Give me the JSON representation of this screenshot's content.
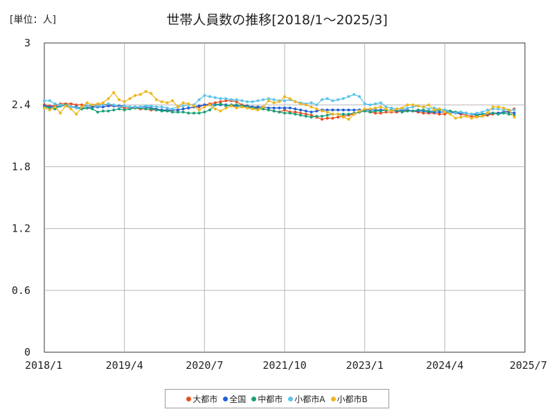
{
  "chart_data": {
    "type": "line",
    "title": "世帯人員数の推移[2018/1～2025/3]",
    "unit_label": "[単位：人]",
    "xlabel": "",
    "ylabel": "",
    "ylim": [
      0,
      3
    ],
    "y_ticks": [
      "0",
      "0.6",
      "1.2",
      "1.8",
      "2.4",
      "3"
    ],
    "y_tick_values": [
      0,
      0.6,
      1.2,
      1.8,
      2.4,
      3
    ],
    "x_ticks": [
      "2018/1",
      "2019/4",
      "2020/7",
      "2021/10",
      "2023/1",
      "2024/4",
      "2025/7"
    ],
    "x_tick_months": [
      0,
      15,
      30,
      45,
      60,
      75,
      90
    ],
    "grid": true,
    "series": [
      {
        "name": "大都市",
        "color": "#e8501e",
        "values": [
          2.4,
          2.39,
          2.39,
          2.41,
          2.41,
          2.41,
          2.4,
          2.4,
          2.39,
          2.39,
          2.4,
          2.4,
          2.4,
          2.39,
          2.38,
          2.37,
          2.37,
          2.37,
          2.36,
          2.36,
          2.35,
          2.35,
          2.35,
          2.34,
          2.35,
          2.35,
          2.36,
          2.37,
          2.38,
          2.38,
          2.4,
          2.41,
          2.42,
          2.43,
          2.44,
          2.44,
          2.43,
          2.4,
          2.39,
          2.38,
          2.37,
          2.36,
          2.35,
          2.34,
          2.33,
          2.35,
          2.33,
          2.33,
          2.32,
          2.31,
          2.3,
          2.28,
          2.26,
          2.27,
          2.27,
          2.28,
          2.29,
          2.3,
          2.31,
          2.33,
          2.34,
          2.33,
          2.32,
          2.32,
          2.33,
          2.33,
          2.33,
          2.34,
          2.34,
          2.34,
          2.33,
          2.32,
          2.32,
          2.32,
          2.31,
          2.31,
          2.33,
          2.32,
          2.31,
          2.3,
          2.29,
          2.29,
          2.29,
          2.3,
          2.31,
          2.32,
          2.33,
          2.34,
          2.36
        ]
      },
      {
        "name": "全国",
        "color": "#1f5fd6",
        "values": [
          2.39,
          2.38,
          2.38,
          2.39,
          2.39,
          2.38,
          2.38,
          2.37,
          2.37,
          2.38,
          2.38,
          2.38,
          2.39,
          2.39,
          2.39,
          2.39,
          2.38,
          2.38,
          2.38,
          2.38,
          2.37,
          2.36,
          2.35,
          2.35,
          2.35,
          2.35,
          2.36,
          2.37,
          2.38,
          2.39,
          2.4,
          2.4,
          2.4,
          2.4,
          2.4,
          2.39,
          2.39,
          2.39,
          2.39,
          2.38,
          2.38,
          2.38,
          2.37,
          2.37,
          2.37,
          2.37,
          2.37,
          2.36,
          2.35,
          2.34,
          2.33,
          2.34,
          2.35,
          2.35,
          2.35,
          2.35,
          2.35,
          2.35,
          2.35,
          2.35,
          2.35,
          2.35,
          2.35,
          2.35,
          2.35,
          2.35,
          2.34,
          2.35,
          2.35,
          2.34,
          2.34,
          2.34,
          2.33,
          2.33,
          2.33,
          2.33,
          2.33,
          2.32,
          2.32,
          2.32,
          2.31,
          2.31,
          2.31,
          2.31,
          2.32,
          2.32,
          2.33,
          2.33,
          2.32
        ]
      },
      {
        "name": "中都市",
        "color": "#1aa07a",
        "values": [
          2.38,
          2.37,
          2.36,
          2.39,
          2.4,
          2.38,
          2.37,
          2.36,
          2.37,
          2.36,
          2.33,
          2.34,
          2.34,
          2.35,
          2.36,
          2.35,
          2.36,
          2.37,
          2.37,
          2.36,
          2.36,
          2.35,
          2.34,
          2.34,
          2.33,
          2.33,
          2.33,
          2.32,
          2.32,
          2.32,
          2.33,
          2.35,
          2.4,
          2.41,
          2.39,
          2.4,
          2.4,
          2.39,
          2.38,
          2.37,
          2.36,
          2.36,
          2.35,
          2.34,
          2.33,
          2.32,
          2.32,
          2.31,
          2.3,
          2.29,
          2.28,
          2.29,
          2.29,
          2.3,
          2.31,
          2.31,
          2.31,
          2.31,
          2.32,
          2.33,
          2.34,
          2.33,
          2.34,
          2.34,
          2.35,
          2.35,
          2.35,
          2.33,
          2.34,
          2.34,
          2.35,
          2.35,
          2.34,
          2.34,
          2.35,
          2.35,
          2.34,
          2.33,
          2.33,
          2.32,
          2.31,
          2.3,
          2.31,
          2.32,
          2.32,
          2.31,
          2.32,
          2.31,
          2.3
        ]
      },
      {
        "name": "小都市A",
        "color": "#5bc3eb",
        "values": [
          2.44,
          2.44,
          2.41,
          2.4,
          2.39,
          2.38,
          2.37,
          2.38,
          2.39,
          2.4,
          2.39,
          2.4,
          2.41,
          2.4,
          2.38,
          2.39,
          2.38,
          2.38,
          2.38,
          2.39,
          2.39,
          2.38,
          2.38,
          2.37,
          2.36,
          2.38,
          2.39,
          2.4,
          2.4,
          2.45,
          2.49,
          2.48,
          2.47,
          2.46,
          2.46,
          2.45,
          2.45,
          2.44,
          2.43,
          2.43,
          2.44,
          2.45,
          2.46,
          2.45,
          2.44,
          2.44,
          2.45,
          2.43,
          2.42,
          2.41,
          2.42,
          2.4,
          2.45,
          2.46,
          2.44,
          2.45,
          2.46,
          2.48,
          2.5,
          2.48,
          2.41,
          2.4,
          2.41,
          2.42,
          2.38,
          2.37,
          2.36,
          2.36,
          2.37,
          2.38,
          2.39,
          2.38,
          2.36,
          2.37,
          2.36,
          2.35,
          2.32,
          2.32,
          2.33,
          2.32,
          2.31,
          2.32,
          2.33,
          2.35,
          2.36,
          2.36,
          2.35,
          2.35,
          2.35
        ]
      },
      {
        "name": "小都市B",
        "color": "#efb51e",
        "values": [
          2.37,
          2.35,
          2.38,
          2.32,
          2.39,
          2.36,
          2.31,
          2.38,
          2.42,
          2.4,
          2.41,
          2.42,
          2.46,
          2.52,
          2.45,
          2.43,
          2.46,
          2.49,
          2.5,
          2.53,
          2.51,
          2.45,
          2.43,
          2.42,
          2.44,
          2.38,
          2.42,
          2.41,
          2.39,
          2.35,
          2.38,
          2.4,
          2.36,
          2.34,
          2.37,
          2.39,
          2.37,
          2.38,
          2.37,
          2.36,
          2.35,
          2.38,
          2.44,
          2.42,
          2.43,
          2.48,
          2.46,
          2.43,
          2.41,
          2.4,
          2.38,
          2.36,
          2.34,
          2.33,
          2.31,
          2.31,
          2.28,
          2.26,
          2.31,
          2.34,
          2.36,
          2.36,
          2.37,
          2.38,
          2.36,
          2.34,
          2.36,
          2.37,
          2.4,
          2.4,
          2.39,
          2.38,
          2.4,
          2.35,
          2.36,
          2.33,
          2.31,
          2.27,
          2.28,
          2.29,
          2.27,
          2.28,
          2.29,
          2.32,
          2.38,
          2.38,
          2.37,
          2.35,
          2.28
        ]
      }
    ]
  }
}
